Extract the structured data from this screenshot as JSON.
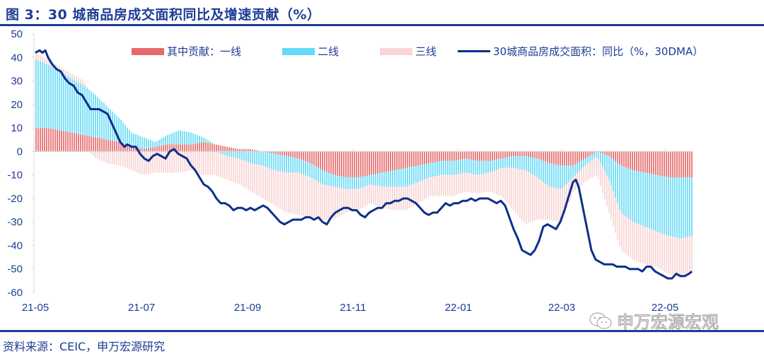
{
  "header": {
    "title": "图 3：30 城商品房成交面积同比及增速贡献（%）"
  },
  "footer": {
    "source": "资料来源：CEIC，申万宏源研究"
  },
  "watermark": {
    "text": "申万宏源宏观",
    "icon": "wechat-icon"
  },
  "colors": {
    "tier1": "#e8686a",
    "tier2": "#66d9f7",
    "tier3": "#f8d6d6",
    "line": "#0e2f8c",
    "axis_text": "#1d3c96"
  },
  "legend": [
    {
      "label": "其中贡献：一线",
      "type": "bar",
      "color": "#e8686a"
    },
    {
      "label": "二线",
      "type": "bar",
      "color": "#66d9f7"
    },
    {
      "label": "三线",
      "type": "bar",
      "color": "#f8d6d6"
    },
    {
      "label": "30城商品房成交面积：同比（%，30DMA）",
      "type": "line",
      "color": "#0e2f8c"
    }
  ],
  "chart_data": {
    "type": "bar+line",
    "title": "图 3：30 城商品房成交面积同比及增速贡献（%）",
    "xlabel": "",
    "ylabel": "%",
    "ylim": [
      -60,
      50
    ],
    "yticks": [
      50,
      40,
      30,
      20,
      10,
      0,
      -10,
      -20,
      -30,
      -40,
      -50,
      -60
    ],
    "xticks": [
      "21-05",
      "21-07",
      "21-09",
      "21-11",
      "22-01",
      "22-03",
      "22-05"
    ],
    "legend_position": "top",
    "grid": false,
    "x": [
      "21-05-01",
      "21-05-08",
      "21-05-15",
      "21-05-22",
      "21-05-29",
      "21-06-05",
      "21-06-12",
      "21-06-19",
      "21-06-26",
      "21-07-03",
      "21-07-10",
      "21-07-17",
      "21-07-24",
      "21-07-31",
      "21-08-07",
      "21-08-14",
      "21-08-21",
      "21-08-28",
      "21-09-04",
      "21-09-11",
      "21-09-18",
      "21-09-25",
      "21-10-02",
      "21-10-09",
      "21-10-16",
      "21-10-23",
      "21-10-30",
      "21-11-06",
      "21-11-13",
      "21-11-20",
      "21-11-27",
      "21-12-04",
      "21-12-11",
      "21-12-18",
      "21-12-25",
      "22-01-01",
      "22-01-08",
      "22-01-15",
      "22-01-22",
      "22-01-29",
      "22-02-05",
      "22-02-12",
      "22-02-19",
      "22-02-26",
      "22-03-05",
      "22-03-12",
      "22-03-19",
      "22-03-26",
      "22-04-02",
      "22-04-09",
      "22-04-16",
      "22-04-23",
      "22-04-30",
      "22-05-07",
      "22-05-14",
      "22-05-21"
    ],
    "series": [
      {
        "name": "其中贡献：一线",
        "type": "bar",
        "values": [
          10,
          10,
          9,
          8,
          7,
          6,
          5,
          4,
          2,
          1,
          2,
          3,
          3,
          3,
          4,
          3,
          2,
          1,
          1,
          0,
          -1,
          -2,
          -3,
          -5,
          -8,
          -10,
          -11,
          -11,
          -10,
          -9,
          -8,
          -7,
          -6,
          -5,
          -4,
          -4,
          -3,
          -4,
          -4,
          -3,
          -2,
          -2,
          -3,
          -5,
          -6,
          -6,
          -3,
          0,
          -2,
          -6,
          -8,
          -9,
          -10,
          -11,
          -11,
          -11
        ]
      },
      {
        "name": "二线",
        "type": "bar",
        "values": [
          29,
          27,
          25,
          23,
          21,
          18,
          14,
          10,
          6,
          5,
          2,
          4,
          6,
          5,
          2,
          0,
          -2,
          -3,
          -5,
          -6,
          -7,
          -7,
          -6,
          -6,
          -6,
          -5,
          -5,
          -5,
          -4,
          -6,
          -7,
          -8,
          -7,
          -6,
          -6,
          -6,
          -6,
          -6,
          -5,
          -4,
          -5,
          -6,
          -8,
          -10,
          -10,
          -5,
          -3,
          -2,
          -10,
          -20,
          -22,
          -23,
          -24,
          -25,
          -26,
          -25
        ]
      },
      {
        "name": "三线",
        "type": "bar",
        "values": [
          3,
          2,
          2,
          2,
          2,
          -3,
          -5,
          -6,
          -8,
          -10,
          -9,
          -9,
          -9,
          -8,
          -10,
          -10,
          -10,
          -11,
          -12,
          -14,
          -15,
          -17,
          -18,
          -17,
          -15,
          -14,
          -10,
          -9,
          -8,
          -9,
          -10,
          -10,
          -9,
          -8,
          -9,
          -9,
          -8,
          -8,
          -8,
          -12,
          -18,
          -23,
          -18,
          -14,
          -14,
          -6,
          -7,
          -8,
          -14,
          -16,
          -16,
          -16,
          -15,
          -16,
          -17,
          -15
        ]
      },
      {
        "name": "30城商品房成交面积：同比（%，30DMA）",
        "type": "line",
        "values": [
          42,
          43,
          37,
          33,
          27,
          21,
          18,
          16,
          10,
          2,
          2,
          -3,
          -4,
          -1,
          -2,
          -5,
          -12,
          -18,
          -23,
          -24,
          -24,
          -25,
          -26,
          -31,
          -29,
          -29,
          -28,
          -31,
          -26,
          -24,
          -25,
          -28,
          -24,
          -22,
          -22,
          -20,
          -21,
          -26,
          -26,
          -22,
          -20,
          -20,
          -20,
          -23,
          -36,
          -44,
          -40,
          -31,
          -33,
          -22,
          -12,
          -26,
          -45,
          -48,
          -50,
          -52
        ]
      }
    ]
  },
  "line_trace": [
    [
      50,
      42
    ],
    [
      56,
      43
    ],
    [
      60,
      42
    ],
    [
      64,
      43
    ],
    [
      68,
      40
    ],
    [
      74,
      37
    ],
    [
      80,
      35
    ],
    [
      86,
      34
    ],
    [
      92,
      31
    ],
    [
      98,
      29
    ],
    [
      104,
      28
    ],
    [
      110,
      25
    ],
    [
      116,
      24
    ],
    [
      122,
      21
    ],
    [
      128,
      18
    ],
    [
      134,
      18
    ],
    [
      140,
      18
    ],
    [
      146,
      17
    ],
    [
      152,
      16
    ],
    [
      158,
      12
    ],
    [
      164,
      8
    ],
    [
      170,
      4
    ],
    [
      176,
      2
    ],
    [
      180,
      3
    ],
    [
      186,
      2
    ],
    [
      192,
      2
    ],
    [
      198,
      -1
    ],
    [
      204,
      -3
    ],
    [
      210,
      -4
    ],
    [
      216,
      -2
    ],
    [
      222,
      -1
    ],
    [
      228,
      -2
    ],
    [
      234,
      -3
    ],
    [
      240,
      0
    ],
    [
      246,
      1
    ],
    [
      252,
      -1
    ],
    [
      258,
      -2
    ],
    [
      264,
      -3
    ],
    [
      270,
      -6
    ],
    [
      276,
      -8
    ],
    [
      282,
      -11
    ],
    [
      288,
      -14
    ],
    [
      294,
      -15
    ],
    [
      300,
      -17
    ],
    [
      306,
      -20
    ],
    [
      312,
      -22
    ],
    [
      318,
      -22
    ],
    [
      324,
      -23
    ],
    [
      330,
      -25
    ],
    [
      336,
      -24
    ],
    [
      342,
      -24
    ],
    [
      348,
      -25
    ],
    [
      354,
      -24
    ],
    [
      360,
      -25
    ],
    [
      366,
      -24
    ],
    [
      372,
      -23
    ],
    [
      378,
      -24
    ],
    [
      384,
      -26
    ],
    [
      390,
      -28
    ],
    [
      396,
      -30
    ],
    [
      402,
      -31
    ],
    [
      408,
      -30
    ],
    [
      414,
      -29
    ],
    [
      420,
      -29
    ],
    [
      426,
      -29
    ],
    [
      432,
      -28
    ],
    [
      438,
      -28
    ],
    [
      444,
      -29
    ],
    [
      450,
      -28
    ],
    [
      456,
      -30
    ],
    [
      462,
      -31
    ],
    [
      468,
      -28
    ],
    [
      474,
      -26
    ],
    [
      480,
      -25
    ],
    [
      486,
      -24
    ],
    [
      492,
      -24
    ],
    [
      498,
      -25
    ],
    [
      504,
      -25
    ],
    [
      510,
      -27
    ],
    [
      516,
      -28
    ],
    [
      522,
      -26
    ],
    [
      528,
      -25
    ],
    [
      534,
      -24
    ],
    [
      540,
      -24
    ],
    [
      546,
      -22
    ],
    [
      552,
      -22
    ],
    [
      558,
      -21
    ],
    [
      564,
      -21
    ],
    [
      570,
      -20
    ],
    [
      576,
      -20
    ],
    [
      582,
      -21
    ],
    [
      588,
      -22
    ],
    [
      594,
      -24
    ],
    [
      600,
      -26
    ],
    [
      606,
      -27
    ],
    [
      612,
      -26
    ],
    [
      618,
      -26
    ],
    [
      624,
      -24
    ],
    [
      630,
      -22
    ],
    [
      636,
      -23
    ],
    [
      642,
      -22
    ],
    [
      648,
      -22
    ],
    [
      654,
      -21
    ],
    [
      660,
      -21
    ],
    [
      666,
      -20
    ],
    [
      672,
      -21
    ],
    [
      678,
      -20
    ],
    [
      684,
      -20
    ],
    [
      690,
      -20
    ],
    [
      696,
      -21
    ],
    [
      702,
      -22
    ],
    [
      708,
      -21
    ],
    [
      714,
      -23
    ],
    [
      720,
      -28
    ],
    [
      726,
      -33
    ],
    [
      732,
      -37
    ],
    [
      738,
      -42
    ],
    [
      744,
      -43
    ],
    [
      750,
      -44
    ],
    [
      756,
      -42
    ],
    [
      762,
      -38
    ],
    [
      768,
      -32
    ],
    [
      774,
      -31
    ],
    [
      780,
      -32
    ],
    [
      786,
      -33
    ],
    [
      792,
      -30
    ],
    [
      798,
      -25
    ],
    [
      804,
      -19
    ],
    [
      810,
      -13
    ],
    [
      814,
      -12
    ],
    [
      818,
      -15
    ],
    [
      824,
      -24
    ],
    [
      830,
      -33
    ],
    [
      836,
      -42
    ],
    [
      842,
      -46
    ],
    [
      848,
      -47
    ],
    [
      854,
      -48
    ],
    [
      860,
      -48
    ],
    [
      866,
      -48
    ],
    [
      872,
      -49
    ],
    [
      878,
      -49
    ],
    [
      884,
      -49
    ],
    [
      890,
      -50
    ],
    [
      896,
      -50
    ],
    [
      902,
      -50
    ],
    [
      908,
      -51
    ],
    [
      914,
      -49
    ],
    [
      920,
      -49
    ],
    [
      926,
      -51
    ],
    [
      932,
      -52
    ],
    [
      938,
      -53
    ],
    [
      944,
      -54
    ],
    [
      950,
      -54
    ],
    [
      956,
      -52
    ],
    [
      962,
      -53
    ],
    [
      968,
      -53
    ],
    [
      974,
      -52
    ],
    [
      978,
      -51
    ]
  ]
}
